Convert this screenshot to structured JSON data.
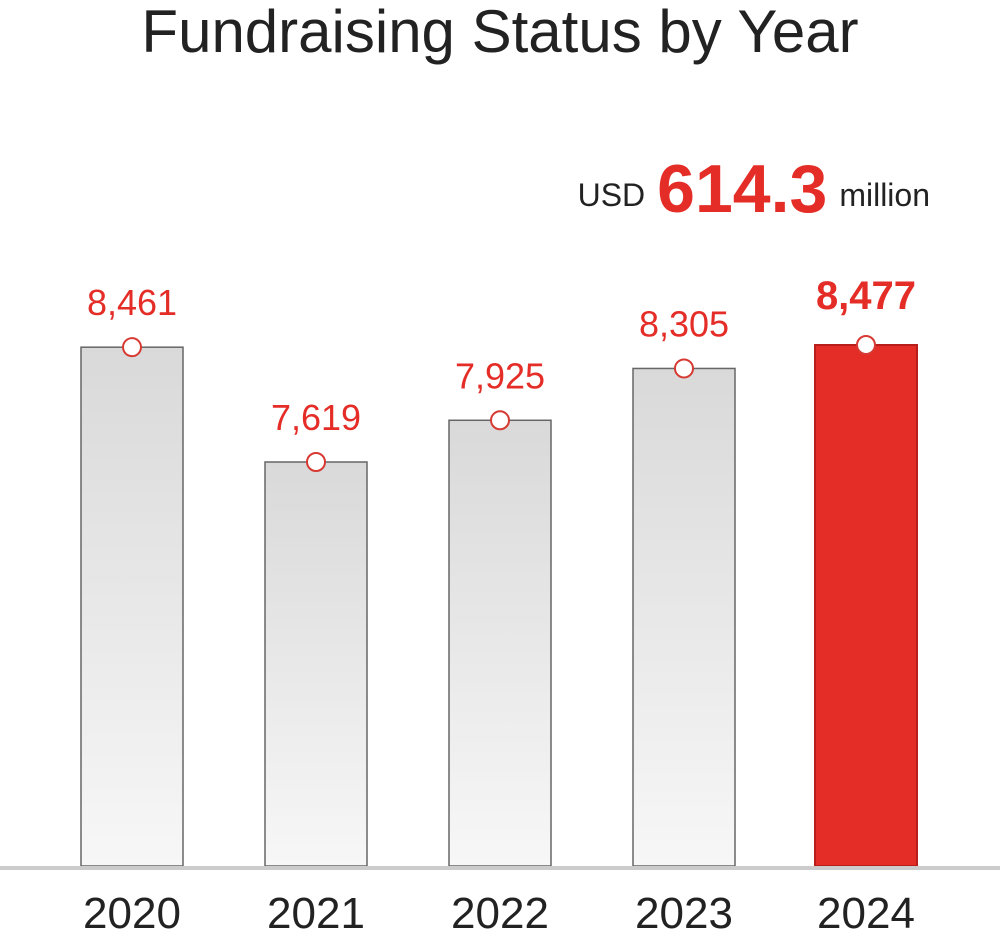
{
  "title": "Fundraising Status by Year",
  "callout": {
    "unit": "USD",
    "amount": "614.3",
    "scale": "million"
  },
  "colors": {
    "accent": "#e52d27",
    "bar_top": "#d9d9d9",
    "bar_bottom": "#f7f7f7",
    "baseline": "#cccccc",
    "text": "#222222"
  },
  "chart_data": {
    "type": "bar",
    "title": "Fundraising Status by Year",
    "categories": [
      "2020",
      "2021",
      "2022",
      "2023",
      "2024"
    ],
    "values": [
      8461,
      7619,
      7925,
      8305,
      8477
    ],
    "value_labels": [
      "8,461",
      "7,619",
      "7,925",
      "8,305",
      "8,477"
    ],
    "highlight_index": 4,
    "xlabel": "",
    "ylabel": "",
    "grid": false,
    "legend": "none"
  }
}
